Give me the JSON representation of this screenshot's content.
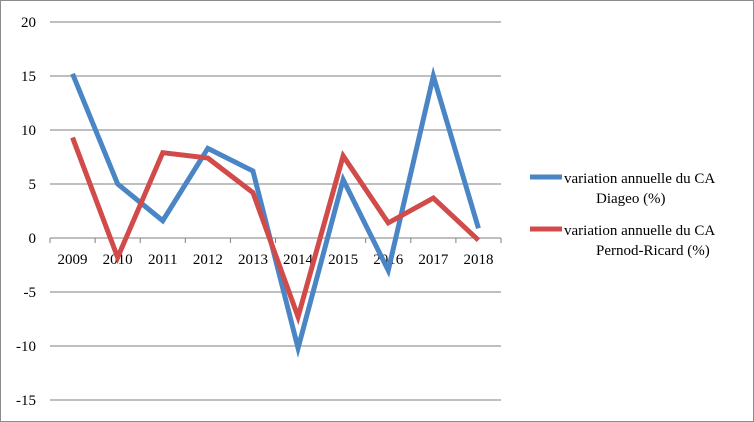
{
  "chart_data": {
    "type": "line",
    "title": "",
    "xlabel": "",
    "ylabel": "",
    "x": [
      "2009",
      "2010",
      "2011",
      "2012",
      "2013",
      "2014",
      "2015",
      "2016",
      "2017",
      "2018"
    ],
    "ylim": [
      -15,
      20
    ],
    "yticks": [
      "20",
      "15",
      "10",
      "5",
      "0",
      "-5",
      "-10",
      "-15"
    ],
    "grid": "horizontal",
    "legend_position": "right",
    "series": [
      {
        "name_lines": [
          "variation annuelle du CA",
          "Diageo (%)"
        ],
        "color": "#4a86c5",
        "values": [
          15.2,
          5.0,
          1.6,
          8.3,
          6.2,
          -10.2,
          5.4,
          -3.0,
          15.0,
          0.9
        ]
      },
      {
        "name_lines": [
          "variation annuelle du CA",
          "Pernod-Ricard (%)"
        ],
        "color": "#d24b4b",
        "values": [
          9.3,
          -1.8,
          7.9,
          7.4,
          4.2,
          -7.3,
          7.6,
          1.4,
          3.7,
          -0.2
        ]
      }
    ]
  }
}
